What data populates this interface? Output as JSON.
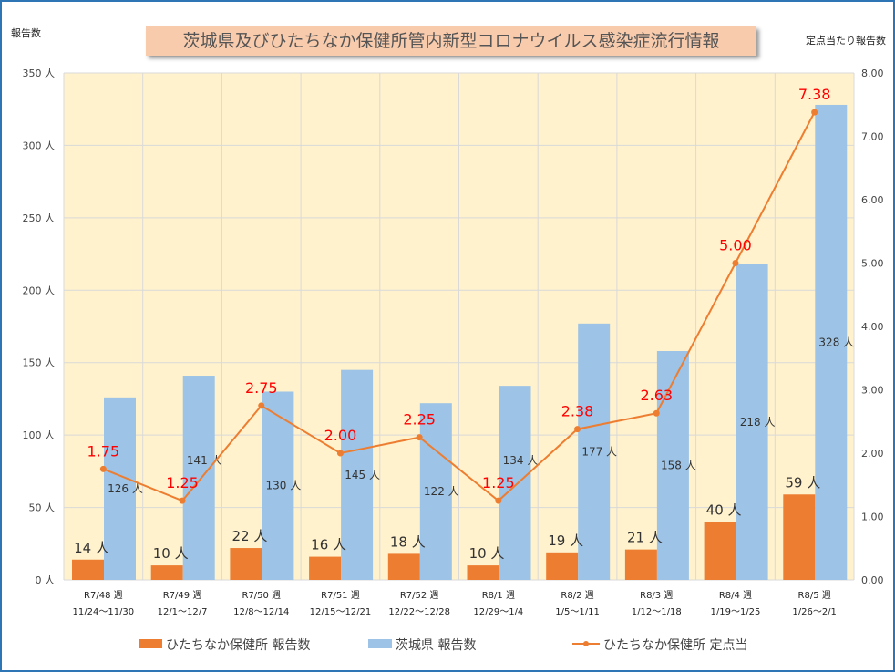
{
  "chart_data": {
    "type": "bar+line",
    "title": "茨城県及びひたちなか保健所管内新型コロナウイルス感染症流行情報",
    "ylabel_left": "報告数",
    "ylabel_right": "定点当たり報告数",
    "ylim_left": [
      0,
      350
    ],
    "ylim_right": [
      0,
      8
    ],
    "yticks_left": [
      "0 人",
      "50 人",
      "100 人",
      "150 人",
      "200 人",
      "250 人",
      "300 人",
      "350 人"
    ],
    "yticks_right": [
      "0.00",
      "1.00",
      "2.00",
      "3.00",
      "4.00",
      "5.00",
      "6.00",
      "7.00",
      "8.00"
    ],
    "grid": true,
    "legend_placement": "bottom",
    "categories": [
      [
        "R7/48 週",
        "11/24～11/30"
      ],
      [
        "R7/49 週",
        "12/1～12/7"
      ],
      [
        "R7/50 週",
        "12/8～12/14"
      ],
      [
        "R7/51 週",
        "12/15～12/21"
      ],
      [
        "R7/52 週",
        "12/22～12/28"
      ],
      [
        "R8/1 週",
        "12/29～1/4"
      ],
      [
        "R8/2 週",
        "1/5～1/11"
      ],
      [
        "R8/3 週",
        "1/12～1/18"
      ],
      [
        "R8/4 週",
        "1/19～1/25"
      ],
      [
        "R8/5 週",
        "1/26～2/1"
      ]
    ],
    "series": [
      {
        "name": "ひたちなか保健所 報告数",
        "type": "bar",
        "axis": "left",
        "color": "#ed7d31",
        "values": [
          14,
          10,
          22,
          16,
          18,
          10,
          19,
          21,
          40,
          59
        ],
        "labels": [
          "14 人",
          "10 人",
          "22 人",
          "16 人",
          "18 人",
          "10 人",
          "19 人",
          "21 人",
          "40 人",
          "59 人"
        ]
      },
      {
        "name": "茨城県 報告数",
        "type": "bar",
        "axis": "left",
        "color": "#9dc3e6",
        "values": [
          126,
          141,
          130,
          145,
          122,
          134,
          177,
          158,
          218,
          328
        ],
        "labels": [
          "126 人",
          "141 人",
          "130 人",
          "145 人",
          "122 人",
          "134 人",
          "177 人",
          "158 人",
          "218 人",
          "328 人"
        ]
      },
      {
        "name": "ひたちなか保健所 定点当",
        "type": "line",
        "axis": "right",
        "color": "#ed7d31",
        "label_color": "#ff0000",
        "values": [
          1.75,
          1.25,
          2.75,
          2.0,
          2.25,
          1.25,
          2.38,
          2.63,
          5.0,
          7.38
        ],
        "labels": [
          "1.75",
          "1.25",
          "2.75",
          "2.00",
          "2.25",
          "1.25",
          "2.38",
          "2.63",
          "5.00",
          "7.38"
        ]
      }
    ]
  }
}
